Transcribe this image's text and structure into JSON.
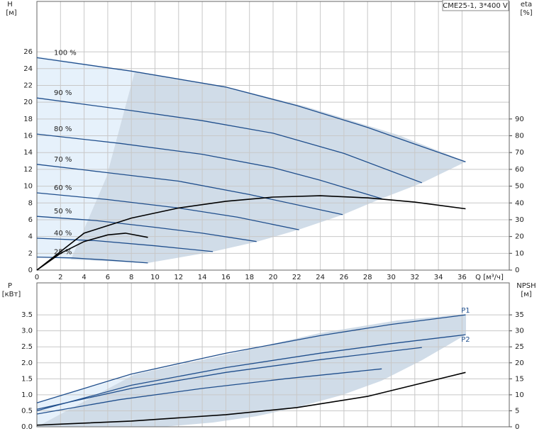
{
  "chart_data": [
    {
      "type": "line",
      "title": "CME25-1, 3*400 V",
      "y_label": "H",
      "y_unit": "[м]",
      "y2_label": "eta",
      "y2_unit": "[%]",
      "x_label": "Q [м³/ч]",
      "xlim": [
        0,
        40
      ],
      "xticks": [
        0,
        2,
        4,
        6,
        8,
        10,
        12,
        14,
        16,
        18,
        20,
        22,
        24,
        26,
        28,
        30,
        32,
        34,
        36
      ],
      "ylim": [
        0,
        32
      ],
      "yticks": [
        0,
        2,
        4,
        6,
        8,
        10,
        12,
        14,
        16,
        18,
        20,
        22,
        24,
        26
      ],
      "y2lim": [
        0,
        160
      ],
      "y2ticks": [
        0,
        10,
        20,
        30,
        40,
        50,
        60,
        70,
        80,
        90
      ],
      "grid": true,
      "series": [
        {
          "name": "100 %",
          "color": "#1f4e8c",
          "x": [
            0,
            8,
            16,
            22,
            28,
            32,
            36.3
          ],
          "values": [
            25.3,
            23.7,
            21.8,
            19.6,
            17,
            15,
            12.9
          ]
        },
        {
          "name": "90 %",
          "color": "#1f4e8c",
          "x": [
            0,
            8,
            14,
            20,
            26,
            32.6
          ],
          "values": [
            20.5,
            19.0,
            17.8,
            16.3,
            13.9,
            10.4
          ]
        },
        {
          "name": "80 %",
          "color": "#1f4e8c",
          "x": [
            0,
            7,
            14,
            20,
            24,
            29.2
          ],
          "values": [
            16.2,
            15.1,
            13.8,
            12.2,
            10.7,
            8.5
          ]
        },
        {
          "name": "70 %",
          "color": "#1f4e8c",
          "x": [
            0,
            6,
            12,
            18,
            25.9
          ],
          "values": [
            12.6,
            11.6,
            10.6,
            9.0,
            6.6
          ]
        },
        {
          "name": "60 %",
          "color": "#1f4e8c",
          "x": [
            0,
            6,
            12,
            17,
            22.2
          ],
          "values": [
            9.2,
            8.4,
            7.4,
            6.3,
            4.8
          ]
        },
        {
          "name": "50 %",
          "color": "#1f4e8c",
          "x": [
            0,
            5,
            10,
            14,
            18.6
          ],
          "values": [
            6.4,
            5.9,
            5.1,
            4.4,
            3.4
          ]
        },
        {
          "name": "40 %",
          "color": "#1f4e8c",
          "x": [
            0,
            5,
            10,
            14.9
          ],
          "values": [
            3.8,
            3.5,
            2.9,
            2.2
          ]
        },
        {
          "name": "25 %",
          "color": "#1f4e8c",
          "x": [
            0,
            3,
            6,
            9.4
          ],
          "values": [
            1.55,
            1.45,
            1.2,
            0.85
          ]
        },
        {
          "color": "#000000",
          "axis": "y2",
          "x": [
            0,
            4,
            8,
            12,
            16,
            20,
            24,
            28,
            32,
            36.3
          ],
          "values": [
            0,
            22,
            31,
            37,
            41,
            43.5,
            44.3,
            43,
            40.5,
            36.5
          ]
        },
        {
          "color": "#000000",
          "axis": "y2",
          "x": [
            0,
            2,
            4,
            6,
            7.5,
            9.4
          ],
          "values": [
            0,
            10,
            17,
            21,
            22,
            19.5
          ]
        }
      ]
    },
    {
      "type": "line",
      "y_label": "P",
      "y_unit": "[кВт]",
      "y2_label": "NPSH",
      "y2_unit": "[м]",
      "xlim": [
        0,
        40
      ],
      "xticks": [
        0,
        2,
        4,
        6,
        8,
        10,
        12,
        14,
        16,
        18,
        20,
        22,
        24,
        26,
        28,
        30,
        32,
        34,
        36
      ],
      "ylim": [
        0,
        4.5
      ],
      "yticks": [
        {
          "value": 0,
          "label": "0.0"
        },
        0.5,
        {
          "value": 1,
          "label": "1.0"
        },
        1.5,
        {
          "value": 2,
          "label": "2.0"
        },
        2.5,
        {
          "value": 3,
          "label": "3.0"
        },
        3.5
      ],
      "y2lim": [
        0,
        45
      ],
      "y2ticks": [
        0,
        5,
        10,
        15,
        20,
        25,
        30,
        35
      ],
      "grid": true,
      "series": [
        {
          "name": "P1",
          "color": "#1f4e8c",
          "x": [
            0,
            8,
            16,
            24,
            30,
            36.3
          ],
          "values": [
            0.75,
            1.65,
            2.3,
            2.85,
            3.2,
            3.5
          ]
        },
        {
          "name": "P2",
          "color": "#1f4e8c",
          "x": [
            0,
            8,
            16,
            24,
            30,
            36.3
          ],
          "values": [
            0.5,
            1.3,
            1.85,
            2.3,
            2.6,
            2.88
          ]
        },
        {
          "color": "#1f4e8c",
          "x": [
            0,
            8,
            16,
            24,
            32.6
          ],
          "values": [
            0.55,
            1.2,
            1.7,
            2.1,
            2.48
          ]
        },
        {
          "color": "#1f4e8c",
          "x": [
            0,
            7,
            14,
            21,
            29.2
          ],
          "values": [
            0.4,
            0.85,
            1.2,
            1.5,
            1.81
          ]
        },
        {
          "color": "#000000",
          "axis": "y2",
          "x": [
            0,
            8,
            16,
            22,
            28,
            36.3
          ],
          "values": [
            0.5,
            1.8,
            3.8,
            6,
            9.5,
            17
          ]
        }
      ]
    }
  ]
}
